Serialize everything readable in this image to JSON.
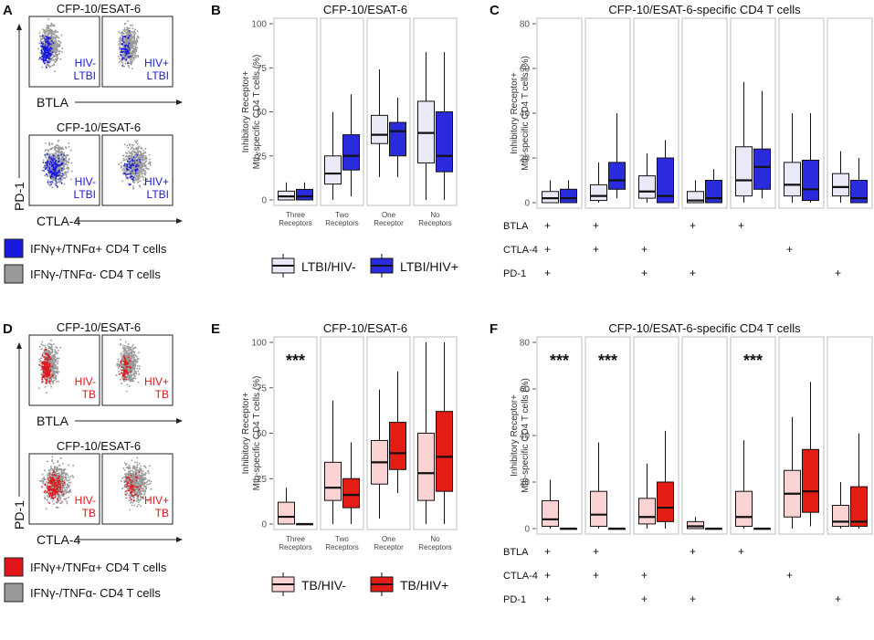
{
  "panels": {
    "A": {
      "letter": "A",
      "gate_title": "CFP-10/ESAT-6",
      "x_marker_top": "BTLA",
      "x_marker_bottom": "CTLA-4",
      "y_marker": "PD-1",
      "labels": [
        [
          "HIV-",
          "LTBI"
        ],
        [
          "HIV+",
          "LTBI"
        ],
        [
          "HIV-",
          "LTBI"
        ],
        [
          "HIV+",
          "LTBI"
        ]
      ],
      "legend": [
        "IFNγ+/TNFα+ CD4 T cells",
        "IFNγ-/TNFα- CD4 T cells"
      ],
      "colors": {
        "pos": "#1a1adf",
        "neg": "#999999"
      }
    },
    "D": {
      "letter": "D",
      "gate_title": "CFP-10/ESAT-6",
      "x_marker_top": "BTLA",
      "x_marker_bottom": "CTLA-4",
      "y_marker": "PD-1",
      "labels": [
        [
          "HIV-",
          "TB"
        ],
        [
          "HIV+",
          "TB"
        ],
        [
          "HIV-",
          "TB"
        ],
        [
          "HIV+",
          "TB"
        ]
      ],
      "legend": [
        "IFNγ+/TNFα+ CD4 T cells",
        "IFNγ-/TNFα- CD4 T cells"
      ],
      "colors": {
        "pos": "#e0161a",
        "neg": "#999999"
      }
    }
  },
  "chart_data": [
    {
      "id": "B",
      "letter": "B",
      "type": "box",
      "title": "CFP-10/ESAT-6",
      "ylabel": [
        "Inhibitory Receptor+",
        "Mtb-specific CD4 T cells (%)"
      ],
      "ylim": [
        0,
        100
      ],
      "yticks": [
        0,
        25,
        50,
        75,
        100
      ],
      "categories": [
        [
          "Three",
          "Receptors"
        ],
        [
          "Two",
          "Receptors"
        ],
        [
          "One",
          "Receptor"
        ],
        [
          "No",
          "Receptors"
        ]
      ],
      "legend": [
        "LTBI/HIV-",
        "LTBI/HIV+"
      ],
      "series": [
        {
          "name": "LTBI/HIV-",
          "color": "#e9e9f7",
          "boxes": [
            [
              0,
              0,
              2,
              5,
              10
            ],
            [
              0,
              9,
              15,
              25,
              50
            ],
            [
              13,
              32,
              37,
              48,
              74
            ],
            [
              0,
              21,
              38,
              56,
              84
            ]
          ]
        },
        {
          "name": "LTBI/HIV+",
          "color": "#2b2bde",
          "boxes": [
            [
              0,
              0,
              2,
              6,
              10
            ],
            [
              2,
              17,
              25,
              37,
              60
            ],
            [
              13,
              25,
              39,
              44,
              58
            ],
            [
              0,
              16,
              25,
              50,
              84
            ]
          ]
        }
      ],
      "annotations": []
    },
    {
      "id": "C",
      "letter": "C",
      "type": "box",
      "title": "CFP-10/ESAT-6-specific CD4 T cells",
      "ylabel": [
        "Inhibitory Receptor+",
        "Mtb-specific CD4 T cells (%)"
      ],
      "ylim": [
        0,
        80
      ],
      "yticks": [
        0,
        20,
        40,
        60,
        80
      ],
      "categories": [
        "BTLA+ CTLA-4+ PD-1+",
        "BTLA+ CTLA-4+",
        "CTLA-4+ PD-1+",
        "BTLA+ PD-1+",
        "BTLA+",
        "CTLA-4+",
        "PD-1+"
      ],
      "matrix_rows": [
        "BTLA",
        "CTLA-4",
        "PD-1"
      ],
      "matrix": [
        [
          "+",
          "+",
          "+"
        ],
        [
          "+",
          "+",
          ""
        ],
        [
          "",
          "+",
          "+"
        ],
        [
          "+",
          "",
          "+"
        ],
        [
          "+",
          "",
          ""
        ],
        [
          "",
          "+",
          ""
        ],
        [
          "",
          "",
          "+"
        ]
      ],
      "series": [
        {
          "name": "LTBI/HIV-",
          "color": "#e9e9f7",
          "boxes": [
            [
              0,
              0,
              2,
              5,
              10
            ],
            [
              0,
              1,
              3,
              8,
              18
            ],
            [
              0,
              2,
              5,
              12,
              22
            ],
            [
              0,
              0,
              1,
              5,
              10
            ],
            [
              0,
              3,
              10,
              25,
              54
            ],
            [
              0,
              3,
              8,
              18,
              40
            ],
            [
              0,
              3,
              7,
              13,
              23
            ]
          ]
        },
        {
          "name": "LTBI/HIV+",
          "color": "#2b2bde",
          "boxes": [
            [
              0,
              0,
              2,
              6,
              10
            ],
            [
              2,
              6,
              10,
              18,
              40
            ],
            [
              0,
              0,
              3,
              20,
              28
            ],
            [
              0,
              0,
              2,
              10,
              15
            ],
            [
              2,
              6,
              16,
              24,
              50
            ],
            [
              0,
              1,
              6,
              19,
              40
            ],
            [
              0,
              0,
              2,
              10,
              20
            ]
          ]
        }
      ],
      "annotations": []
    },
    {
      "id": "E",
      "letter": "E",
      "type": "box",
      "title": "CFP-10/ESAT-6",
      "ylabel": [
        "Inhibitory Receptor+",
        "Mtb-specific CD4 T cells (%)"
      ],
      "ylim": [
        0,
        100
      ],
      "yticks": [
        0,
        25,
        50,
        75,
        100
      ],
      "categories": [
        [
          "Three",
          "Receptors"
        ],
        [
          "Two",
          "Receptors"
        ],
        [
          "One",
          "Receptor"
        ],
        [
          "No",
          "Receptors"
        ]
      ],
      "legend": [
        "TB/HIV-",
        "TB/HIV+"
      ],
      "series": [
        {
          "name": "TB/HIV-",
          "color": "#fbd3d3",
          "boxes": [
            [
              0,
              0,
              4,
              12,
              20
            ],
            [
              0,
              13,
              20,
              34,
              68
            ],
            [
              3,
              22,
              34,
              46,
              74
            ],
            [
              0,
              13,
              28,
              50,
              100
            ]
          ]
        },
        {
          "name": "TB/HIV+",
          "color": "#e31d13",
          "boxes": [
            [
              0,
              0,
              0,
              0,
              0
            ],
            [
              0,
              9,
              16,
              25,
              45
            ],
            [
              17,
              30,
              39,
              56,
              84
            ],
            [
              0,
              18,
              37,
              62,
              100
            ]
          ]
        }
      ],
      "annotations": [
        {
          "category": 0,
          "text": "***"
        }
      ]
    },
    {
      "id": "F",
      "letter": "F",
      "type": "box",
      "title": "CFP-10/ESAT-6-specific CD4 T cells",
      "ylabel": [
        "Inhibitory Receptor+",
        "Mtb-specific CD4 T cells (%)"
      ],
      "ylim": [
        0,
        80
      ],
      "yticks": [
        0,
        20,
        40,
        60,
        80
      ],
      "categories": [
        "BTLA+ CTLA-4+ PD-1+",
        "BTLA+ CTLA-4+",
        "CTLA-4+ PD-1+",
        "BTLA+ PD-1+",
        "BTLA+",
        "CTLA-4+",
        "PD-1+"
      ],
      "matrix_rows": [
        "BTLA",
        "CTLA-4",
        "PD-1"
      ],
      "matrix": [
        [
          "+",
          "+",
          "+"
        ],
        [
          "+",
          "+",
          ""
        ],
        [
          "",
          "+",
          "+"
        ],
        [
          "+",
          "",
          "+"
        ],
        [
          "+",
          "",
          ""
        ],
        [
          "",
          "+",
          ""
        ],
        [
          "",
          "",
          "+"
        ]
      ],
      "series": [
        {
          "name": "TB/HIV-",
          "color": "#fbd3d3",
          "boxes": [
            [
              0,
              1,
              4,
              12,
              21
            ],
            [
              0,
              1,
              6,
              16,
              37
            ],
            [
              0,
              2,
              5,
              13,
              28
            ],
            [
              0,
              0,
              1,
              3,
              5
            ],
            [
              0,
              1,
              5,
              16,
              38
            ],
            [
              0,
              5,
              15,
              25,
              48
            ],
            [
              0,
              1,
              3,
              10,
              20
            ]
          ]
        },
        {
          "name": "TB/HIV+",
          "color": "#e31d13",
          "boxes": [
            [
              0,
              0,
              0,
              0,
              0
            ],
            [
              0,
              0,
              0,
              0,
              0
            ],
            [
              0,
              3,
              9,
              20,
              42
            ],
            [
              0,
              0,
              0,
              0,
              0
            ],
            [
              0,
              0,
              0,
              0,
              0
            ],
            [
              1,
              7,
              16,
              34,
              63
            ],
            [
              0,
              1,
              3,
              18,
              41
            ]
          ]
        }
      ],
      "annotations": [
        {
          "category": 0,
          "text": "***"
        },
        {
          "category": 1,
          "text": "***"
        },
        {
          "category": 4,
          "text": "***"
        }
      ]
    }
  ]
}
